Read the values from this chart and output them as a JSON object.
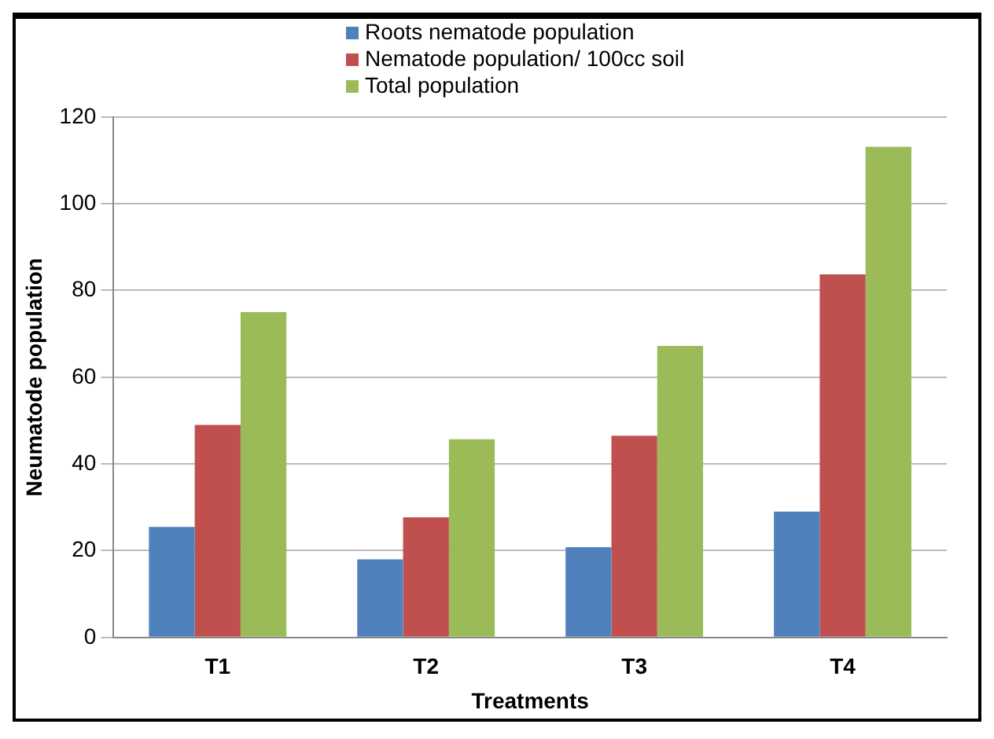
{
  "chart_data": {
    "type": "bar",
    "xlabel": "Treatments",
    "ylabel": "Neumatode population",
    "categories": [
      "T1",
      "T2",
      "T3",
      "T4"
    ],
    "series": [
      {
        "name": "Roots nematode population",
        "color": "#4f81bd",
        "values": [
          25.5,
          18,
          20.8,
          29
        ]
      },
      {
        "name": "Nematode population/ 100cc soil",
        "color": "#c0504d",
        "values": [
          49,
          27.7,
          46.5,
          83.7
        ]
      },
      {
        "name": "Total population",
        "color": "#9bbb59",
        "values": [
          75,
          45.7,
          67.2,
          113.1
        ]
      }
    ],
    "ylim": [
      0,
      120
    ],
    "yticks": [
      0,
      20,
      40,
      60,
      80,
      100,
      120
    ],
    "grid": "y",
    "legend": "top"
  }
}
